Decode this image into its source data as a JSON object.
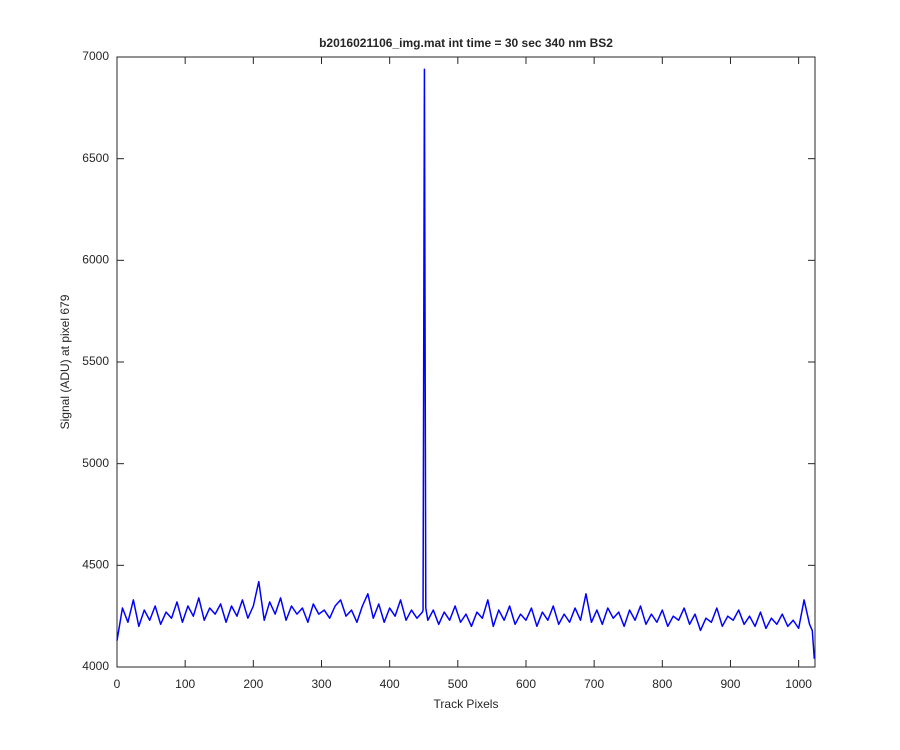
{
  "chart_data": {
    "type": "line",
    "title": "b2016021106_img.mat int time = 30 sec  340 nm BS2",
    "xlabel": "Track Pixels",
    "ylabel": "Signal (ADU) at pixel 679",
    "x": [
      0,
      8,
      16,
      24,
      32,
      40,
      48,
      56,
      64,
      72,
      80,
      88,
      96,
      104,
      112,
      120,
      128,
      136,
      144,
      152,
      160,
      168,
      176,
      184,
      192,
      200,
      208,
      216,
      224,
      232,
      240,
      248,
      256,
      264,
      272,
      280,
      288,
      296,
      304,
      312,
      320,
      328,
      336,
      344,
      352,
      360,
      368,
      376,
      384,
      392,
      400,
      408,
      416,
      424,
      432,
      440,
      448,
      449,
      451,
      453,
      456,
      464,
      472,
      480,
      488,
      496,
      504,
      512,
      520,
      528,
      536,
      544,
      552,
      560,
      568,
      576,
      584,
      592,
      600,
      608,
      616,
      624,
      632,
      640,
      648,
      656,
      664,
      672,
      680,
      688,
      696,
      704,
      712,
      720,
      728,
      736,
      744,
      752,
      760,
      768,
      776,
      784,
      792,
      800,
      808,
      816,
      824,
      832,
      840,
      848,
      856,
      864,
      872,
      880,
      888,
      896,
      904,
      912,
      920,
      928,
      936,
      944,
      952,
      960,
      968,
      976,
      984,
      992,
      1000,
      1008,
      1016,
      1020,
      1023
    ],
    "series": [
      {
        "color": "#0000ff",
        "values": [
          4130,
          4290,
          4220,
          4330,
          4200,
          4280,
          4230,
          4300,
          4210,
          4270,
          4240,
          4320,
          4220,
          4300,
          4250,
          4340,
          4230,
          4290,
          4260,
          4310,
          4220,
          4300,
          4250,
          4330,
          4240,
          4300,
          4420,
          4230,
          4320,
          4260,
          4340,
          4230,
          4300,
          4260,
          4290,
          4220,
          4310,
          4260,
          4280,
          4240,
          4300,
          4330,
          4250,
          4280,
          4220,
          4300,
          4360,
          4240,
          4310,
          4220,
          4290,
          4250,
          4330,
          4230,
          4280,
          4240,
          4270,
          4280,
          6940,
          4290,
          4230,
          4280,
          4210,
          4270,
          4230,
          4300,
          4220,
          4260,
          4200,
          4270,
          4240,
          4330,
          4200,
          4280,
          4230,
          4300,
          4210,
          4260,
          4230,
          4290,
          4200,
          4270,
          4230,
          4300,
          4210,
          4260,
          4220,
          4290,
          4230,
          4360,
          4220,
          4280,
          4210,
          4290,
          4240,
          4270,
          4200,
          4280,
          4230,
          4300,
          4210,
          4260,
          4220,
          4280,
          4200,
          4250,
          4230,
          4290,
          4210,
          4260,
          4180,
          4240,
          4220,
          4290,
          4200,
          4250,
          4230,
          4280,
          4210,
          4250,
          4200,
          4270,
          4190,
          4240,
          4210,
          4260,
          4200,
          4230,
          4190,
          4330,
          4210,
          4180,
          4040
        ]
      }
    ],
    "xlim": [
      0,
      1024
    ],
    "ylim": [
      4000,
      7000
    ],
    "xticks": [
      0,
      100,
      200,
      300,
      400,
      500,
      600,
      700,
      800,
      900,
      1000
    ],
    "yticks": [
      4000,
      4500,
      5000,
      5500,
      6000,
      6500,
      7000
    ]
  }
}
